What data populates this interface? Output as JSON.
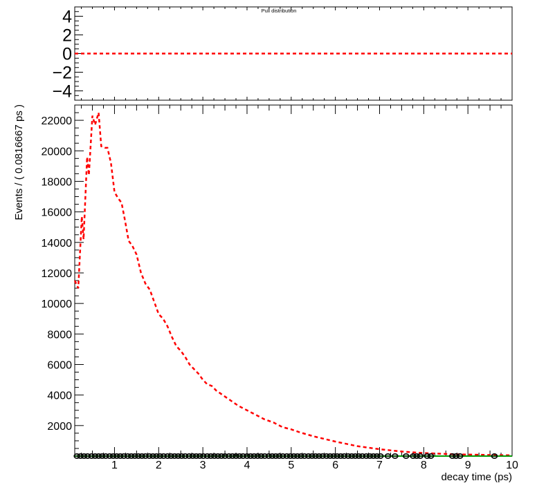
{
  "colors": {
    "fit_line": "#ff0000",
    "data_marker": "#000000",
    "baseline": "#009900",
    "frame": "#000000"
  },
  "chart_data": [
    {
      "type": "line",
      "title": "Pull distribution",
      "xlim": [
        0.1,
        10
      ],
      "ylim": [
        -5,
        5
      ],
      "y_ticks": [
        4,
        2,
        0,
        -2,
        -4
      ],
      "y_tick_labels": [
        "4",
        "2",
        "0",
        "−2",
        "−4"
      ],
      "series": [
        {
          "style": "dashed",
          "color": "#ff0000",
          "x": [
            0.1,
            10
          ],
          "y": [
            0,
            0
          ]
        }
      ]
    },
    {
      "type": "line",
      "xlabel": "decay time (ps)",
      "ylabel": "Events / ( 0.0816667 ps )",
      "xlim": [
        0.1,
        10
      ],
      "ylim": [
        0,
        23000
      ],
      "x_ticks": [
        1,
        2,
        3,
        4,
        5,
        6,
        7,
        8,
        9,
        10
      ],
      "y_ticks": [
        2000,
        4000,
        6000,
        8000,
        10000,
        12000,
        14000,
        16000,
        18000,
        20000,
        22000
      ],
      "series": [
        {
          "style": "dashed",
          "color": "#ff0000",
          "x": [
            0.1,
            0.18,
            0.26,
            0.3,
            0.38,
            0.42,
            0.5,
            0.56,
            0.64,
            0.7,
            0.78,
            0.84,
            0.92,
            1.0,
            1.08,
            1.16,
            1.24,
            1.32,
            1.4,
            1.5,
            1.6,
            1.7,
            1.8,
            1.9,
            2.0,
            2.1,
            2.2,
            2.3,
            2.4,
            2.5,
            2.6,
            2.7,
            2.8,
            2.9,
            3.0,
            3.1,
            3.2,
            3.3,
            3.4,
            3.6,
            3.8,
            4.0,
            4.2,
            4.4,
            4.6,
            4.8,
            5.0,
            5.2,
            5.5,
            6.0,
            6.5,
            7.0,
            7.5,
            8.0,
            8.5,
            9.0,
            9.5,
            10.0
          ],
          "y": [
            11500,
            11000,
            15700,
            14200,
            19600,
            18400,
            22300,
            21700,
            22500,
            20300,
            20200,
            20200,
            19200,
            17300,
            16900,
            16600,
            15400,
            14100,
            13800,
            13200,
            12000,
            11300,
            10900,
            10100,
            9300,
            9000,
            8500,
            7800,
            7200,
            6900,
            6500,
            6000,
            5700,
            5400,
            5000,
            4700,
            4600,
            4300,
            4100,
            3700,
            3300,
            3000,
            2700,
            2400,
            2200,
            1900,
            1750,
            1550,
            1300,
            950,
            650,
            450,
            300,
            200,
            140,
            100,
            70,
            50
          ]
        },
        {
          "style": "solid",
          "color": "#009900",
          "x": [
            0.1,
            10
          ],
          "y": [
            0,
            0
          ]
        }
      ],
      "markers": {
        "shape": "circle",
        "x": [
          0.15,
          0.23,
          0.31,
          0.39,
          0.48,
          0.56,
          0.64,
          0.72,
          0.8,
          0.89,
          0.97,
          1.05,
          1.13,
          1.21,
          1.3,
          1.38,
          1.46,
          1.54,
          1.62,
          1.7,
          1.79,
          1.87,
          1.95,
          2.03,
          2.11,
          2.2,
          2.28,
          2.36,
          2.44,
          2.52,
          2.6,
          2.69,
          2.77,
          2.85,
          2.93,
          3.01,
          3.1,
          3.18,
          3.26,
          3.34,
          3.42,
          3.5,
          3.59,
          3.67,
          3.75,
          3.83,
          3.91,
          4.0,
          4.08,
          4.16,
          4.24,
          4.32,
          4.4,
          4.49,
          4.57,
          4.65,
          4.73,
          4.81,
          4.9,
          4.98,
          5.06,
          5.14,
          5.22,
          5.3,
          5.39,
          5.47,
          5.55,
          5.63,
          5.71,
          5.8,
          5.88,
          5.96,
          6.04,
          6.12,
          6.2,
          6.29,
          6.37,
          6.45,
          6.53,
          6.61,
          6.7,
          6.78,
          6.86,
          6.94,
          7.02,
          7.19,
          7.35,
          7.6,
          7.76,
          7.84,
          7.92,
          8.08,
          8.16,
          8.65,
          8.73,
          8.82,
          9.6
        ],
        "y": 0
      }
    }
  ]
}
